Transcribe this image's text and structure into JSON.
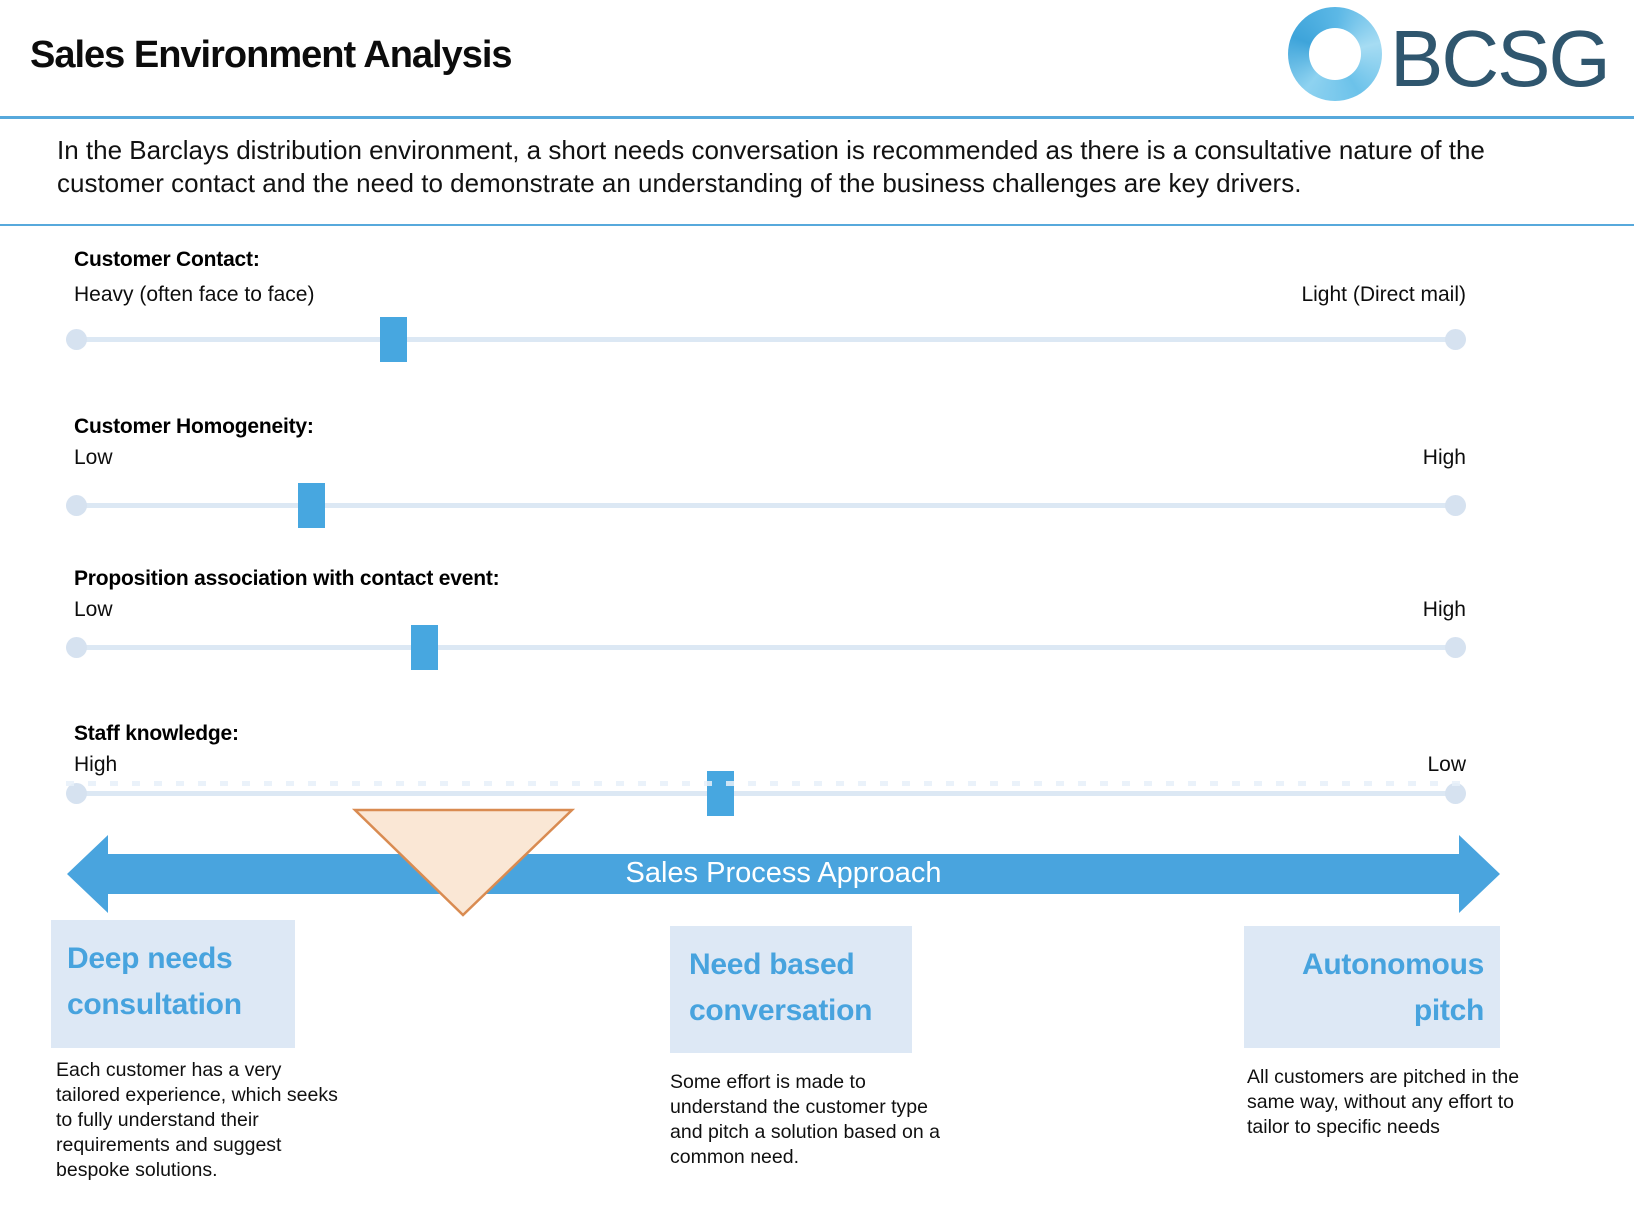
{
  "header": {
    "title": "Sales Environment Analysis",
    "logo_text": "BCSG"
  },
  "intro": "In the Barclays distribution environment, a short needs conversation is recommended as there is a consultative nature of the\ncustomer contact and the need to demonstrate an understanding of the business challenges are key drivers.",
  "sliders": [
    {
      "label": "Customer Contact:",
      "left_end": "Heavy (often face to face)",
      "right_end": "Light (Direct mail)",
      "value_pct": 23.0
    },
    {
      "label": "Customer Homogeneity:",
      "left_end": "Low",
      "right_end": "High",
      "value_pct": 17.0
    },
    {
      "label": "Proposition association with contact event:",
      "left_end": "Low",
      "right_end": "High",
      "value_pct": 25.2
    },
    {
      "label": "Staff knowledge:",
      "left_end": "High",
      "right_end": "Low",
      "value_pct": 46.7
    }
  ],
  "process_arrow": {
    "label": "Sales Process Approach"
  },
  "approaches": [
    {
      "title": "Deep needs\nconsultation",
      "description": "Each customer has a very\ntailored experience, which seeks\nto fully understand their\nrequirements and suggest\nbespoke solutions."
    },
    {
      "title": "Need based\nconversation",
      "description": "Some effort is made to\nunderstand the customer type\nand pitch a solution based on a\ncommon need."
    },
    {
      "title": "Autonomous\npitch",
      "description": "All customers are pitched in the\nsame way, without any effort to\ntailor to specific needs"
    }
  ],
  "colors": {
    "accent_blue": "#47A7E0",
    "arrow_blue": "#49A4DE",
    "title_blue": "#47A3DE",
    "box_background": "#DDE8F5",
    "track": "#DCE8F4",
    "track_endpoint": "#D6E2F0",
    "rule_blue": "#57A9DC",
    "triangle_fill": "#FAE7D5",
    "triangle_stroke": "#D98B51",
    "logo_ring_blue": "#54B4E2",
    "logo_text_color": "#2F566E"
  }
}
